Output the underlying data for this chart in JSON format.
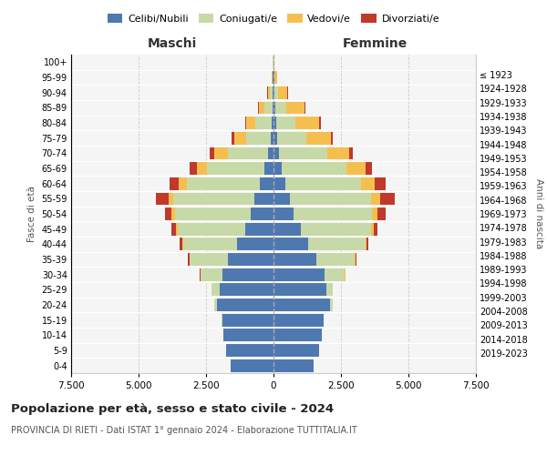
{
  "age_groups": [
    "0-4",
    "5-9",
    "10-14",
    "15-19",
    "20-24",
    "25-29",
    "30-34",
    "35-39",
    "40-44",
    "45-49",
    "50-54",
    "55-59",
    "60-64",
    "65-69",
    "70-74",
    "75-79",
    "80-84",
    "85-89",
    "90-94",
    "95-99",
    "100+"
  ],
  "birth_years": [
    "2019-2023",
    "2014-2018",
    "2009-2013",
    "2004-2008",
    "1999-2003",
    "1994-1998",
    "1989-1993",
    "1984-1988",
    "1979-1983",
    "1974-1978",
    "1969-1973",
    "1964-1968",
    "1959-1963",
    "1954-1958",
    "1949-1953",
    "1944-1948",
    "1939-1943",
    "1934-1938",
    "1929-1933",
    "1924-1928",
    "≤ 1923"
  ],
  "m_cel": [
    1600,
    1750,
    1850,
    1900,
    2100,
    2000,
    1900,
    1700,
    1350,
    1050,
    850,
    700,
    500,
    350,
    200,
    100,
    80,
    50,
    30,
    20,
    10
  ],
  "m_con": [
    3,
    5,
    10,
    30,
    100,
    300,
    800,
    1400,
    2000,
    2500,
    2800,
    3000,
    2700,
    2100,
    1500,
    900,
    600,
    300,
    100,
    30,
    10
  ],
  "m_ved": [
    0,
    0,
    0,
    1,
    2,
    5,
    10,
    20,
    40,
    80,
    120,
    200,
    300,
    400,
    500,
    450,
    350,
    200,
    80,
    20,
    5
  ],
  "m_div": [
    0,
    0,
    0,
    1,
    2,
    5,
    20,
    50,
    80,
    150,
    250,
    450,
    350,
    250,
    150,
    100,
    30,
    20,
    10,
    5,
    0
  ],
  "f_nub": [
    1500,
    1700,
    1800,
    1850,
    2100,
    1950,
    1900,
    1600,
    1300,
    1000,
    750,
    600,
    450,
    300,
    200,
    120,
    100,
    60,
    40,
    25,
    10
  ],
  "f_con": [
    1,
    2,
    5,
    20,
    80,
    250,
    750,
    1400,
    2100,
    2600,
    2900,
    3000,
    2800,
    2400,
    1800,
    1100,
    700,
    400,
    120,
    25,
    5
  ],
  "f_ved": [
    0,
    0,
    0,
    1,
    2,
    5,
    10,
    25,
    50,
    100,
    200,
    350,
    500,
    700,
    800,
    900,
    900,
    700,
    350,
    80,
    10
  ],
  "f_div": [
    0,
    0,
    0,
    1,
    2,
    5,
    20,
    50,
    80,
    150,
    300,
    550,
    400,
    250,
    150,
    80,
    40,
    25,
    15,
    5,
    0
  ],
  "color_celibe": "#4e78b0",
  "color_coniugato": "#c8d9a8",
  "color_vedovo": "#f5bf4f",
  "color_divorziato": "#c0392b",
  "title": "Popolazione per età, sesso e stato civile - 2024",
  "subtitle": "PROVINCIA DI RIETI - Dati ISTAT 1° gennaio 2024 - Elaborazione TUTTITALIA.IT",
  "xlabel_left": "Maschi",
  "xlabel_right": "Femmine",
  "ylabel_left": "Fasce di età",
  "ylabel_right": "Anni di nascita",
  "xlim": 7500,
  "background_color": "#f5f5f5",
  "grid_color": "#cccccc"
}
